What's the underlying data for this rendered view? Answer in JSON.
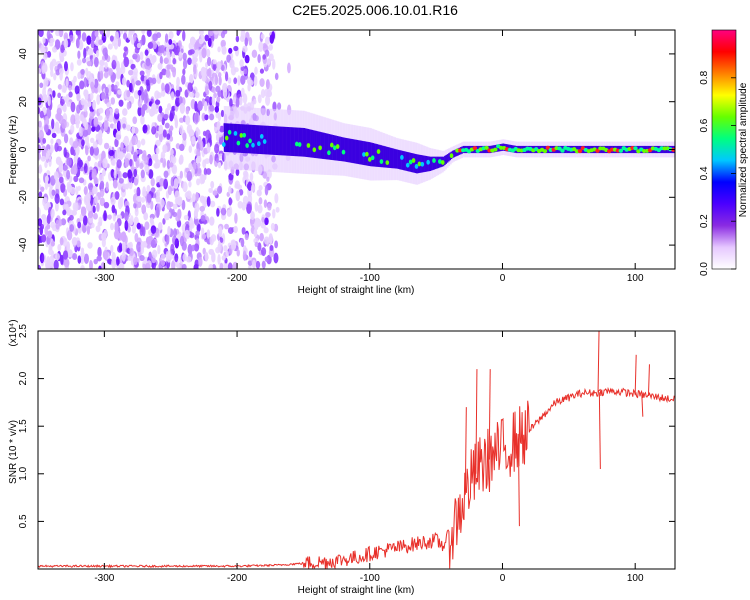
{
  "title": "C2E5.2025.006.10.01.R16",
  "chart_data": [
    {
      "type": "heatmap",
      "xlabel": "Height of straight line (km)",
      "ylabel": "Frequency (Hz)",
      "xlim": [
        -350,
        130
      ],
      "ylim": [
        -50,
        50
      ],
      "x_ticks": [
        -300,
        -200,
        -100,
        0,
        100
      ],
      "x_tick_labels": [
        "-300",
        "-200",
        "-100",
        "0",
        "100"
      ],
      "y_ticks": [
        -40,
        -20,
        0,
        20,
        40
      ],
      "y_tick_labels": [
        "-40",
        "-20",
        "0",
        "20",
        "40"
      ],
      "colorbar": {
        "label": "Normalized spectral amplitude",
        "range": [
          0,
          1
        ],
        "ticks": [
          0,
          0.2,
          0.4,
          0.6,
          0.8
        ],
        "tick_labels": [
          "0.0",
          "0.2",
          "0.4",
          "0.6",
          "0.8"
        ],
        "colors": [
          "#ffffff",
          "#e6c8ff",
          "#8a2be2",
          "#4b00ff",
          "#0000ff",
          "#00c8ff",
          "#00ff80",
          "#66ff00",
          "#ffff00",
          "#ff8000",
          "#ff0000",
          "#ff0080"
        ]
      },
      "noise_region_x": [
        -350,
        -170
      ],
      "signal_track": {
        "x": [
          -210,
          -180,
          -150,
          -120,
          -100,
          -80,
          -65,
          -55,
          -45,
          -38,
          -30,
          -10,
          0,
          10,
          50,
          100,
          130
        ],
        "f": [
          5,
          4,
          3,
          0,
          -2,
          -4,
          -6,
          -6,
          -5,
          -2,
          0,
          0,
          1,
          0,
          0,
          0,
          0
        ],
        "halfwidth": [
          6,
          6,
          6,
          5,
          5,
          4,
          4,
          3,
          2,
          1.5,
          1.5,
          1.5,
          1.5,
          1.5,
          1.5,
          1.5,
          1.5
        ]
      }
    },
    {
      "type": "line",
      "xlabel": "Height of straight line (km)",
      "ylabel": "SNR (10 * v/v)",
      "y_scale_label": "(x10⁴)",
      "xlim": [
        -350,
        130
      ],
      "ylim": [
        0,
        2.5
      ],
      "x_ticks": [
        -300,
        -200,
        -100,
        0,
        100
      ],
      "x_tick_labels": [
        "-300",
        "-200",
        "-100",
        "0",
        "100"
      ],
      "y_ticks": [
        0.5,
        1.0,
        1.5,
        2.0,
        2.5
      ],
      "y_tick_labels": [
        "0.5",
        "1.0",
        "1.5",
        "2.0",
        "2.5"
      ],
      "color": "#e8302a",
      "series": [
        {
          "x": [
            -350,
            -300,
            -250,
            -200,
            -170,
            -150,
            -130,
            -110,
            -95,
            -80,
            -70,
            -60,
            -50,
            -45,
            -40,
            -35,
            -30,
            -25,
            -20,
            -15,
            -10,
            -5,
            0,
            10,
            20,
            30,
            40,
            50,
            60,
            70,
            80,
            90,
            100,
            110,
            120,
            130
          ],
          "y": [
            0.03,
            0.03,
            0.03,
            0.03,
            0.04,
            0.06,
            0.08,
            0.12,
            0.18,
            0.22,
            0.25,
            0.28,
            0.3,
            0.25,
            0.35,
            0.5,
            0.7,
            0.9,
            1.0,
            1.1,
            1.15,
            1.2,
            1.25,
            1.35,
            1.45,
            1.6,
            1.75,
            1.8,
            1.85,
            1.85,
            1.87,
            1.86,
            1.84,
            1.82,
            1.8,
            1.78
          ]
        }
      ],
      "spikes": [
        {
          "x": -28,
          "y": 1.7
        },
        {
          "x": -20,
          "y": 2.1
        },
        {
          "x": -10,
          "y": 2.1
        },
        {
          "x": 12,
          "y": 0.45
        },
        {
          "x": 72,
          "y": 2.5
        },
        {
          "x": 73,
          "y": 1.05
        },
        {
          "x": 100,
          "y": 2.25
        },
        {
          "x": 105,
          "y": 1.6
        },
        {
          "x": 110,
          "y": 2.15
        }
      ]
    }
  ]
}
